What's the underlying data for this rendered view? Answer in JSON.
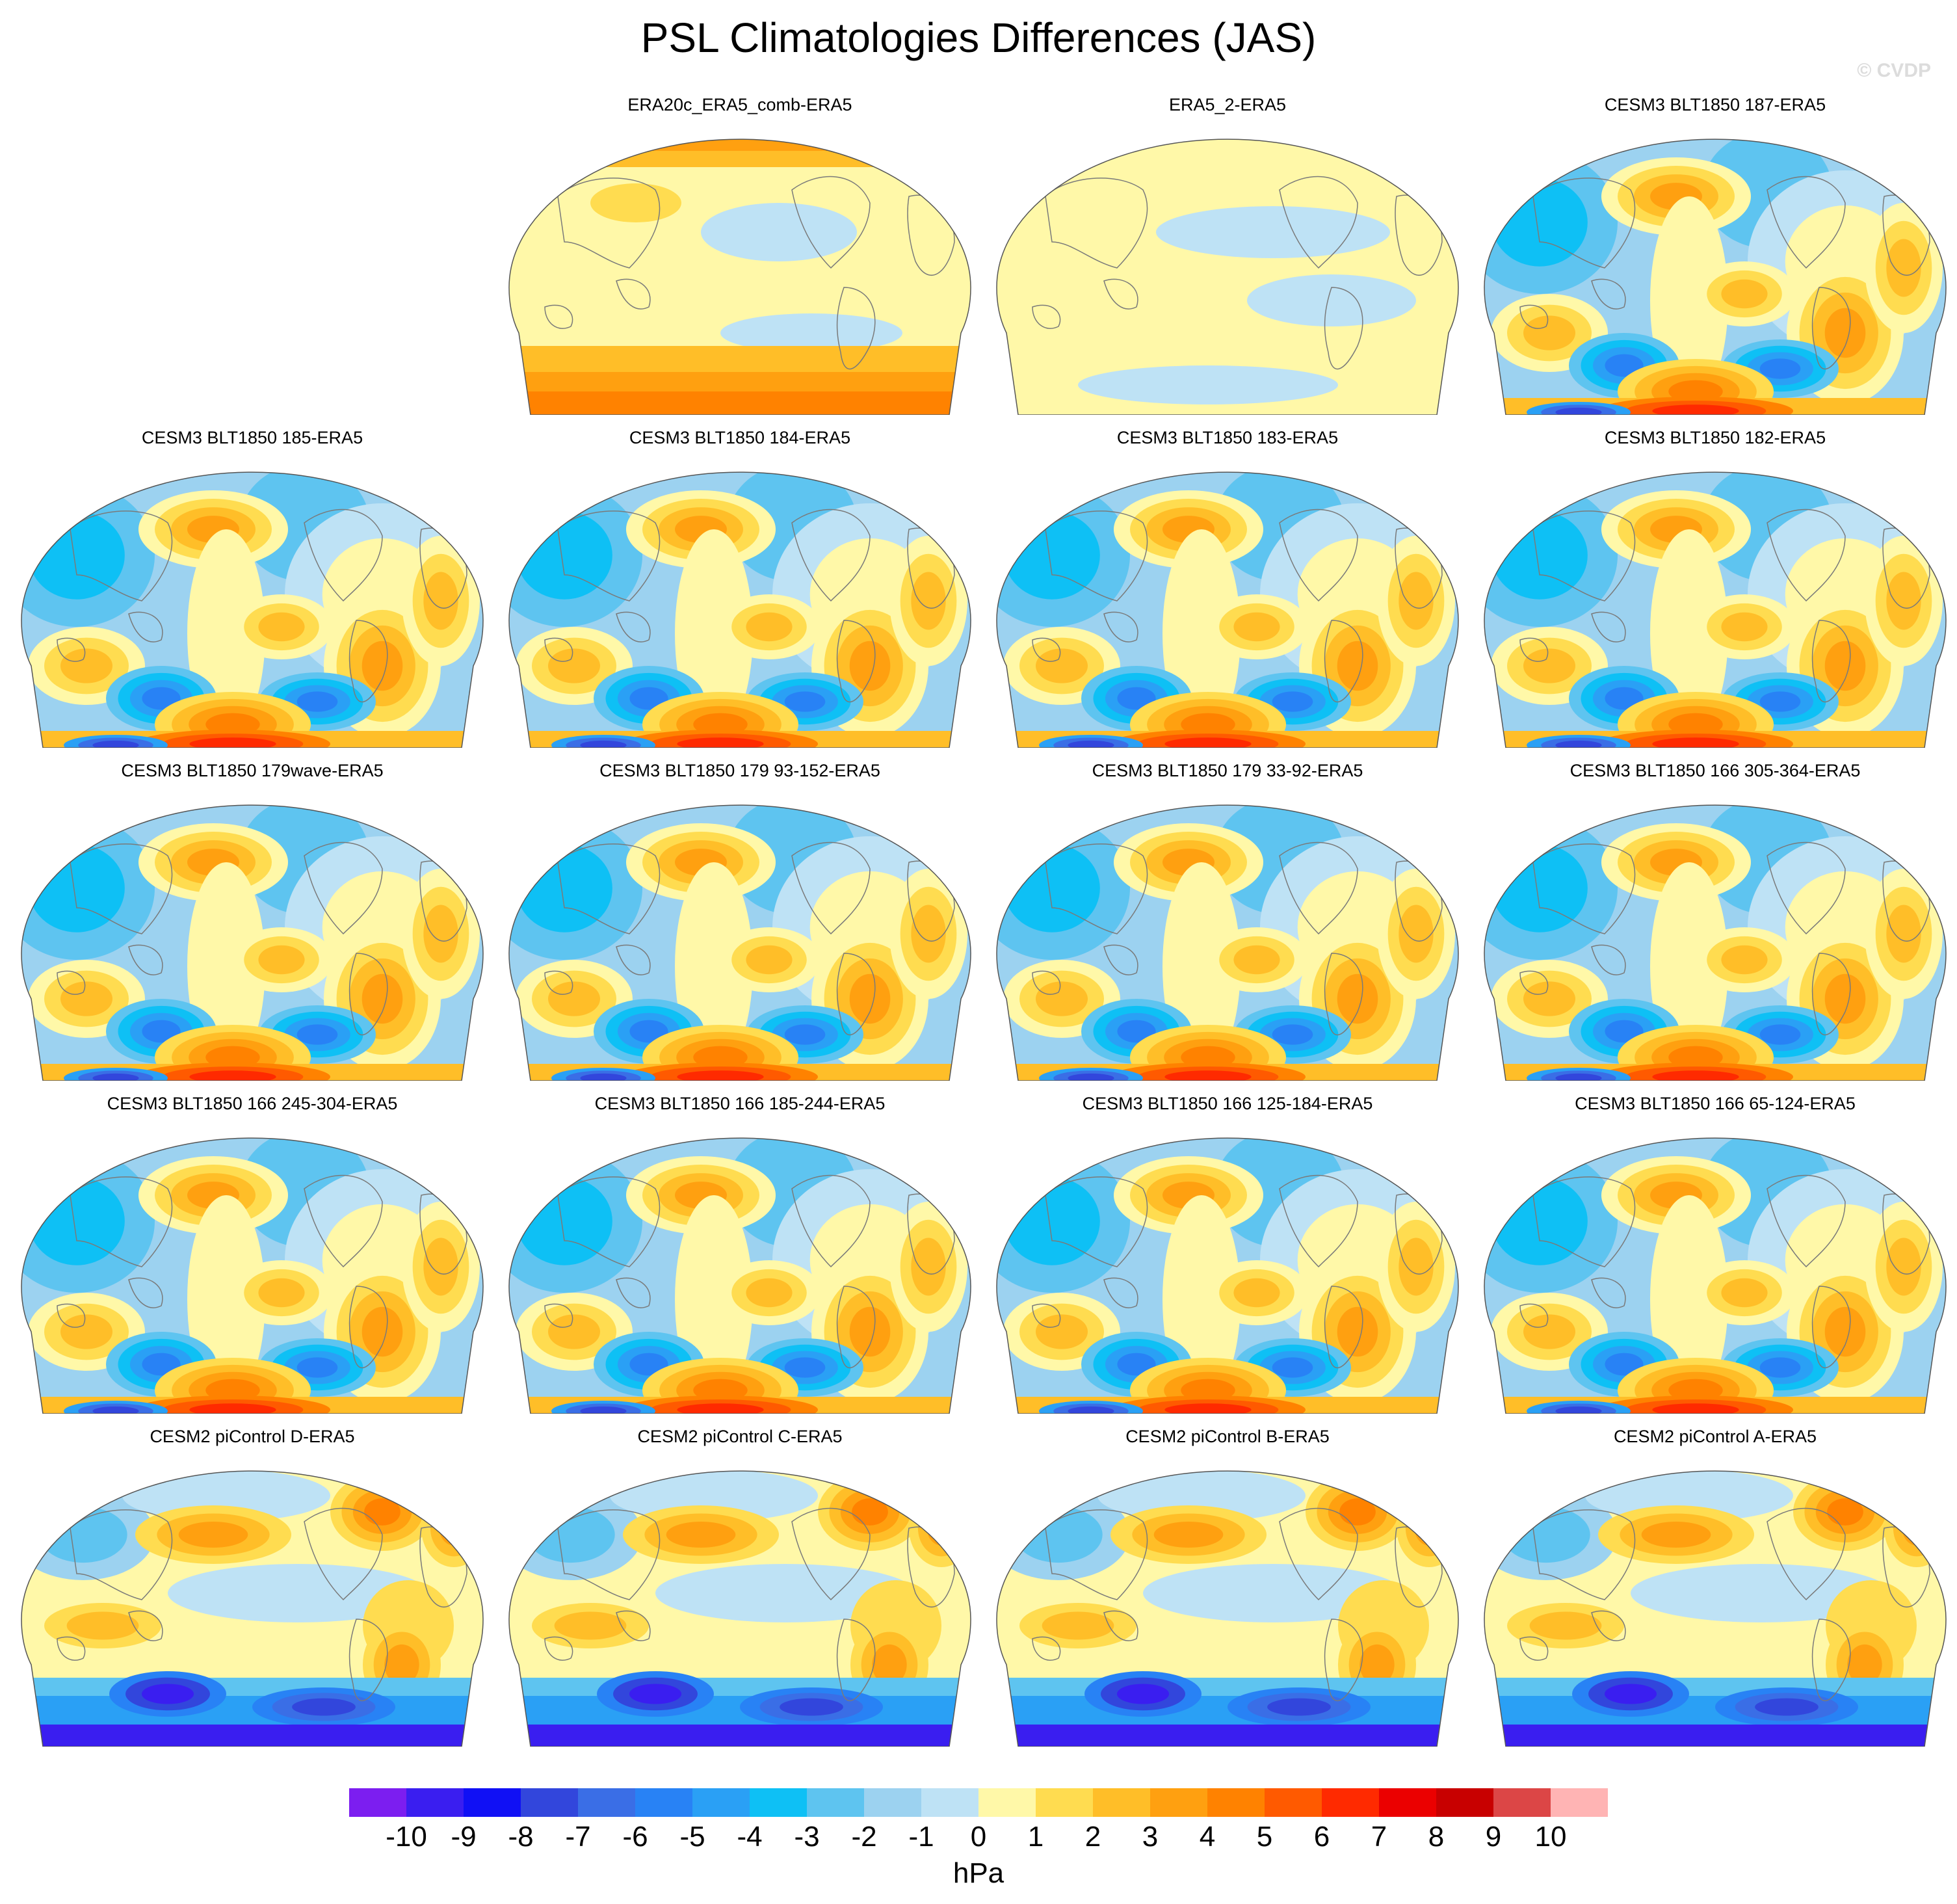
{
  "title": "PSL Climatologies Differences (JAS)",
  "credit": "© CVDP",
  "panels": [
    {
      "label": "ERA20c_ERA5_comb-ERA5",
      "kind": "era20c"
    },
    {
      "label": "ERA5_2-ERA5",
      "kind": "era5"
    },
    {
      "label": "CESM3 BLT1850 187-ERA5",
      "kind": "cesm3"
    },
    {
      "label": "CESM3 BLT1850 185-ERA5",
      "kind": "cesm3"
    },
    {
      "label": "CESM3 BLT1850 184-ERA5",
      "kind": "cesm3"
    },
    {
      "label": "CESM3 BLT1850 183-ERA5",
      "kind": "cesm3"
    },
    {
      "label": "CESM3 BLT1850 182-ERA5",
      "kind": "cesm3"
    },
    {
      "label": "CESM3 BLT1850 179wave-ERA5",
      "kind": "cesm3"
    },
    {
      "label": "CESM3 BLT1850 179 93-152-ERA5",
      "kind": "cesm3"
    },
    {
      "label": "CESM3 BLT1850 179 33-92-ERA5",
      "kind": "cesm3"
    },
    {
      "label": "CESM3 BLT1850 166 305-364-ERA5",
      "kind": "cesm3"
    },
    {
      "label": "CESM3 BLT1850 166 245-304-ERA5",
      "kind": "cesm3"
    },
    {
      "label": "CESM3 BLT1850 166 185-244-ERA5",
      "kind": "cesm3"
    },
    {
      "label": "CESM3 BLT1850 166 125-184-ERA5",
      "kind": "cesm3"
    },
    {
      "label": "CESM3 BLT1850 166 65-124-ERA5",
      "kind": "cesm3"
    },
    {
      "label": "CESM2 piControl D-ERA5",
      "kind": "cesm2"
    },
    {
      "label": "CESM2 piControl C-ERA5",
      "kind": "cesm2"
    },
    {
      "label": "CESM2 piControl B-ERA5",
      "kind": "cesm2"
    },
    {
      "label": "CESM2 piControl A-ERA5",
      "kind": "cesm2"
    }
  ],
  "colorbar": {
    "units": "hPa",
    "ticks": [
      "-10",
      "-9",
      "-8",
      "-7",
      "-6",
      "-5",
      "-4",
      "-3",
      "-2",
      "-1",
      "0",
      "1",
      "2",
      "3",
      "4",
      "5",
      "6",
      "7",
      "8",
      "9",
      "10"
    ],
    "colors": [
      "#7c1ef0",
      "#3a1ef0",
      "#1010f5",
      "#3246dc",
      "#3a6ee6",
      "#2882f5",
      "#2aa0f5",
      "#0ec0f5",
      "#5ec4f0",
      "#9cd2f0",
      "#bee2f5",
      "#fff8a8",
      "#ffdc50",
      "#ffbe28",
      "#ffa010",
      "#ff8200",
      "#ff5a00",
      "#ff2a00",
      "#eb0000",
      "#c80000",
      "#dc4646",
      "#ffb4b4"
    ]
  }
}
